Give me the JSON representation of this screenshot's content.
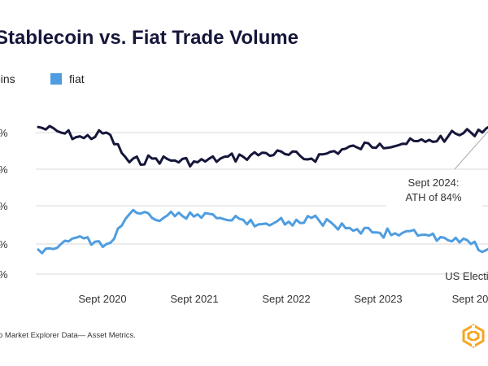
{
  "chart_data": {
    "type": "line",
    "title": "Stablecoin vs. Fiat Trade Volume",
    "x_tick_labels": [
      "Sept 2020",
      "Sept 2021",
      "Sept 2022",
      "Sept 2023",
      "Sept 20"
    ],
    "x_range": [
      "2019-09",
      "2024-12"
    ],
    "y_tick_labels": [
      "%",
      "%",
      "%",
      "%",
      "%"
    ],
    "y_range_percent": [
      0,
      100
    ],
    "grid": true,
    "legend_position": "top-left",
    "series": [
      {
        "name": "coins",
        "color": "#15163a",
        "x": [
          "2019-09",
          "2019-12",
          "2020-03",
          "2020-06",
          "2020-09",
          "2020-12",
          "2021-03",
          "2021-06",
          "2021-09",
          "2021-12",
          "2022-03",
          "2022-06",
          "2022-09",
          "2022-12",
          "2023-03",
          "2023-06",
          "2023-09",
          "2023-12",
          "2024-03",
          "2024-06",
          "2024-09",
          "2024-12"
        ],
        "values": [
          83,
          80,
          77,
          80,
          64,
          66,
          65,
          64,
          66,
          67,
          69,
          68,
          66,
          70,
          72,
          74,
          74,
          75,
          78,
          80,
          84,
          79
        ]
      },
      {
        "name": "fiat",
        "color": "#4f9de0",
        "x": [
          "2019-09",
          "2019-12",
          "2020-03",
          "2020-06",
          "2020-09",
          "2020-12",
          "2021-03",
          "2021-06",
          "2021-09",
          "2021-12",
          "2022-03",
          "2022-06",
          "2022-09",
          "2022-12",
          "2023-03",
          "2023-06",
          "2023-09",
          "2023-12",
          "2024-03",
          "2024-06",
          "2024-09",
          "2024-12"
        ],
        "values": [
          17,
          20,
          23,
          20,
          36,
          34,
          35,
          36,
          34,
          33,
          31,
          32,
          34,
          30,
          28,
          26,
          26,
          25,
          22,
          20,
          16,
          21
        ]
      }
    ],
    "annotations": [
      {
        "text_line1": "Sept 2024:",
        "text_line2": "ATH of 84%",
        "x": "2024-09",
        "y": 84
      },
      {
        "text": "US Elections",
        "x": "2024-11"
      }
    ]
  },
  "texts": {
    "title": "Stablecoin vs. Fiat Trade Volume",
    "source": "o Market Explorer Data— Asset Metrics."
  },
  "colors": {
    "stablecoin_line": "#15163a",
    "fiat_line": "#4f9de0",
    "election_marker": "#c0211f",
    "grid": "#d8d8d8",
    "logo_accent": "#f5a623"
  },
  "icons": {
    "logo": "hexagon-logo-icon"
  }
}
